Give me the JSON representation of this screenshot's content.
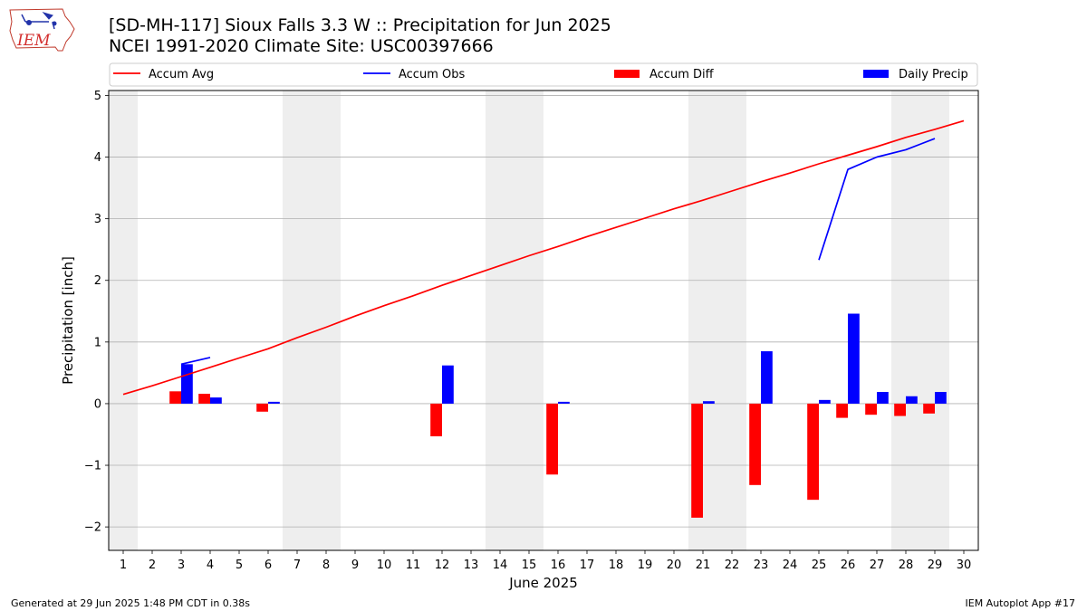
{
  "header": {
    "title_line1": "[SD-MH-117] Sioux Falls 3.3 W :: Precipitation for Jun 2025",
    "title_line2": "NCEI 1991-2020 Climate Site: USC00397666",
    "logo_text": "IEM"
  },
  "footer": {
    "left": "Generated at 29 Jun 2025 1:48 PM CDT in 0.38s",
    "right": "IEM Autoplot App #17"
  },
  "colors": {
    "accum_avg": "#ff0000",
    "accum_obs": "#0000ff",
    "accum_diff": "#ff0000",
    "daily_precip": "#0000ff",
    "weekend_shade": "#eeeeee",
    "grid": "#b0b0b0"
  },
  "chart_data": {
    "type": "bar",
    "xlabel": "June 2025",
    "ylabel": "Precipitation [inch]",
    "x": [
      1,
      2,
      3,
      4,
      5,
      6,
      7,
      8,
      9,
      10,
      11,
      12,
      13,
      14,
      15,
      16,
      17,
      18,
      19,
      20,
      21,
      22,
      23,
      24,
      25,
      26,
      27,
      28,
      29,
      30
    ],
    "xlim": [
      0.5,
      30.5
    ],
    "ylim": [
      -2.38,
      5.08
    ],
    "yticks": [
      -2,
      -1,
      0,
      1,
      2,
      3,
      4,
      5
    ],
    "ytick_labels": [
      "−2",
      "−1",
      "0",
      "1",
      "2",
      "3",
      "4",
      "5"
    ],
    "grid": "horizontal",
    "legend_position": "top",
    "shaded_days": [
      1,
      7,
      8,
      14,
      15,
      21,
      22,
      28,
      29
    ],
    "series": [
      {
        "name": "Accum Avg",
        "kind": "line",
        "x": [
          1,
          2,
          3,
          4,
          5,
          6,
          7,
          8,
          9,
          10,
          11,
          12,
          13,
          14,
          15,
          16,
          17,
          18,
          19,
          20,
          21,
          22,
          23,
          24,
          25,
          26,
          27,
          28,
          29,
          30
        ],
        "values": [
          0.15,
          0.29,
          0.44,
          0.59,
          0.74,
          0.89,
          1.07,
          1.24,
          1.42,
          1.59,
          1.75,
          1.92,
          2.08,
          2.24,
          2.4,
          2.55,
          2.71,
          2.86,
          3.01,
          3.16,
          3.3,
          3.45,
          3.6,
          3.74,
          3.89,
          4.03,
          4.17,
          4.32,
          4.45,
          4.59
        ]
      },
      {
        "name": "Accum Obs",
        "kind": "line",
        "segments": [
          {
            "x": [
              3,
              4
            ],
            "values": [
              0.64,
              0.75
            ]
          },
          {
            "x": [
              25,
              26,
              27,
              28,
              29
            ],
            "values": [
              2.33,
              3.8,
              4.0,
              4.12,
              4.3
            ]
          }
        ]
      },
      {
        "name": "Accum Diff",
        "kind": "bar",
        "x": [
          3,
          4,
          6,
          12,
          16,
          21,
          23,
          25,
          26,
          27,
          28,
          29
        ],
        "values": [
          0.2,
          0.16,
          -0.13,
          -0.53,
          -1.15,
          -1.85,
          -1.32,
          -1.56,
          -0.23,
          -0.18,
          -0.2,
          -0.16
        ]
      },
      {
        "name": "Daily Precip",
        "kind": "bar",
        "x": [
          3,
          4,
          6,
          12,
          16,
          21,
          23,
          25,
          26,
          27,
          28,
          29
        ],
        "values": [
          0.64,
          0.1,
          0.03,
          0.62,
          0.03,
          0.04,
          0.85,
          0.06,
          1.46,
          0.19,
          0.12,
          0.19
        ]
      }
    ]
  }
}
